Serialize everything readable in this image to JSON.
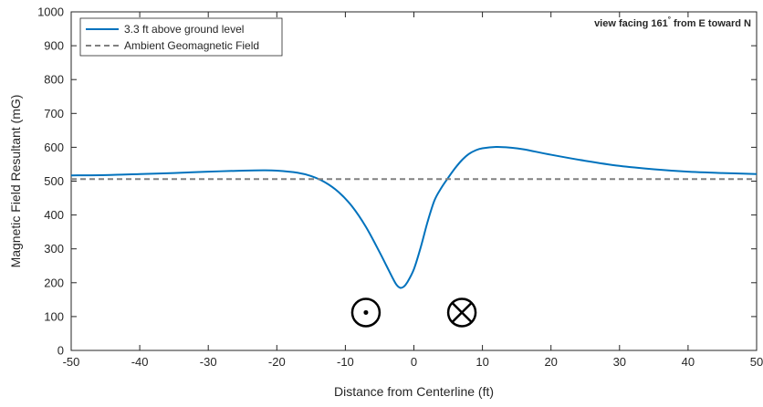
{
  "chart_data": {
    "type": "line",
    "title": "",
    "annotation": {
      "prefix": "view facing 161",
      "degree": "°",
      "suffix": " from E toward N"
    },
    "xlabel": "Distance from Centerline (ft)",
    "ylabel": "Magnetic Field Resultant (mG)",
    "xlim": [
      -50,
      50
    ],
    "ylim": [
      0,
      1000
    ],
    "xticks": [
      -50,
      -40,
      -30,
      -20,
      -10,
      0,
      10,
      20,
      30,
      40,
      50
    ],
    "yticks": [
      0,
      100,
      200,
      300,
      400,
      500,
      600,
      700,
      800,
      900,
      1000
    ],
    "grid": false,
    "legend_position": "top-left",
    "series": [
      {
        "name": "3.3 ft above ground level",
        "style": "solid",
        "color": "#0072BD",
        "x": [
          -50,
          -45,
          -40,
          -35,
          -30,
          -25,
          -22,
          -20,
          -17,
          -15,
          -13,
          -11,
          -9,
          -7,
          -5,
          -4,
          -3,
          -2.5,
          -2,
          -1.5,
          -1,
          0,
          1,
          2,
          3,
          4,
          5,
          6,
          7,
          8,
          9,
          10,
          12,
          14,
          16,
          20,
          25,
          30,
          35,
          40,
          45,
          50
        ],
        "y": [
          517,
          518,
          521,
          524,
          528,
          531,
          532,
          531,
          525,
          515,
          497,
          468,
          425,
          365,
          290,
          250,
          210,
          193,
          185,
          188,
          200,
          240,
          305,
          380,
          443,
          480,
          510,
          538,
          562,
          580,
          591,
          597,
          601,
          599,
          594,
          578,
          560,
          545,
          535,
          528,
          524,
          521
        ]
      },
      {
        "name": "Ambient Geomagnetic Field",
        "style": "dashed",
        "color": "#808080",
        "x": [
          -50,
          50
        ],
        "y": [
          506,
          506
        ]
      }
    ],
    "symbols": [
      {
        "name": "current-out-of-page-icon",
        "x": -7,
        "y": 112
      },
      {
        "name": "current-into-page-icon",
        "x": 7,
        "y": 112
      }
    ]
  }
}
